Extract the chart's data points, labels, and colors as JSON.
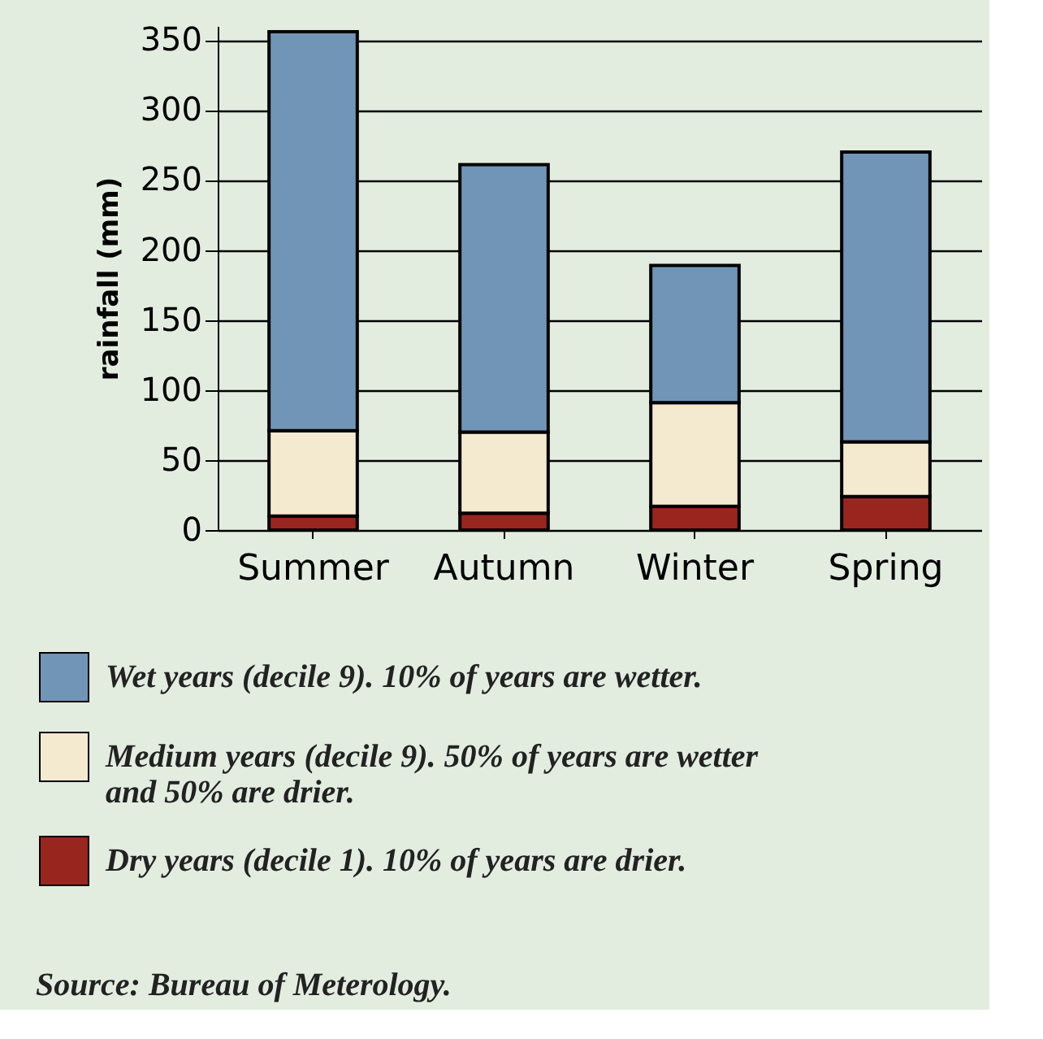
{
  "chart_data": {
    "type": "bar",
    "stacked": true,
    "categories": [
      "Summer",
      "Autumn",
      "Winter",
      "Spring"
    ],
    "ylabel": "rainfall  (mm)",
    "ylim": [
      0,
      360
    ],
    "yticks": [
      0,
      50,
      100,
      150,
      200,
      250,
      300,
      350
    ],
    "grid": "y",
    "legend": "bottom",
    "series": [
      {
        "name": "Dry years (decile 1). 10% of years are drier.",
        "color": "#98261f",
        "values": [
          10,
          12,
          17,
          24
        ]
      },
      {
        "name": "Medium years (decile 9). 50% of years are wetter and 50% are drier.",
        "color": "#f4ead0",
        "values": [
          61,
          58,
          74,
          39
        ]
      },
      {
        "name": "Wet years (decile 9). 10% of years are wetter.",
        "color": "#7195b6",
        "values": [
          285,
          191,
          98,
          207
        ]
      }
    ],
    "annotations": [
      "Source: Bureau of Meterology."
    ]
  }
}
